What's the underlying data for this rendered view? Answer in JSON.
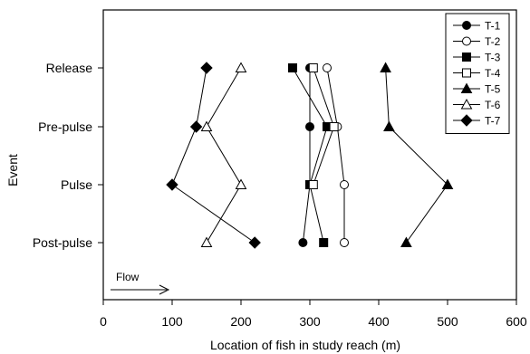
{
  "chart_data": {
    "type": "line",
    "orientation": "horizontal-series",
    "xlabel": "Location of fish in study reach (m)",
    "ylabel": "Event",
    "xlim": [
      0,
      600
    ],
    "xticks": [
      "0",
      "100",
      "200",
      "300",
      "400",
      "500",
      "600"
    ],
    "categories": [
      "Release",
      "Pre-pulse",
      "Pulse",
      "Post-pulse"
    ],
    "legend_position": "top-right",
    "annotation": {
      "text": "Flow",
      "arrow": "right"
    },
    "series": [
      {
        "name": "T-1",
        "marker": "circle",
        "filled": true,
        "values": [
          300,
          300,
          300,
          290
        ]
      },
      {
        "name": "T-2",
        "marker": "circle",
        "filled": false,
        "values": [
          325,
          340,
          350,
          350
        ]
      },
      {
        "name": "T-3",
        "marker": "square",
        "filled": true,
        "values": [
          275,
          325,
          300,
          320
        ]
      },
      {
        "name": "T-4",
        "marker": "square",
        "filled": false,
        "values": [
          305,
          335,
          305,
          null
        ]
      },
      {
        "name": "T-5",
        "marker": "triangle",
        "filled": true,
        "values": [
          410,
          415,
          500,
          440
        ]
      },
      {
        "name": "T-6",
        "marker": "triangle",
        "filled": false,
        "values": [
          200,
          150,
          200,
          150
        ]
      },
      {
        "name": "T-7",
        "marker": "diamond",
        "filled": true,
        "values": [
          150,
          135,
          100,
          220
        ]
      }
    ]
  }
}
